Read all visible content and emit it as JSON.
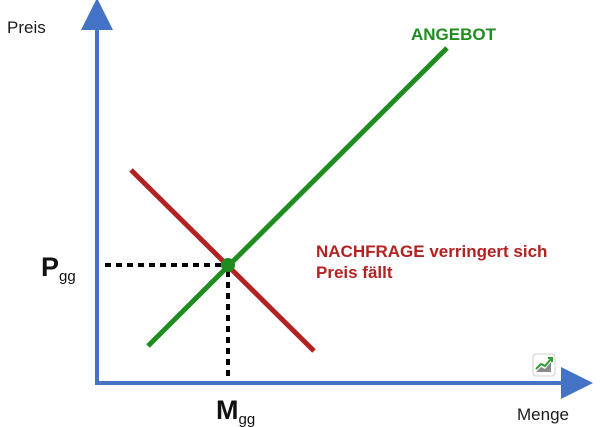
{
  "axes": {
    "y_label": "Preis",
    "x_label": "Menge"
  },
  "equilibrium": {
    "price_main": "P",
    "price_sub": "gg",
    "quantity_main": "M",
    "quantity_sub": "gg"
  },
  "curves": {
    "supply_label": "ANGEBOT",
    "demand_label_line1": "NACHFRAGE verringert sich",
    "demand_label_line2": "Preis fällt"
  },
  "colors": {
    "axis": "#4472c4",
    "supply": "#1e8c1e",
    "demand": "#b22222",
    "guides": "#000000",
    "equilibrium_point": "#1e8c1e"
  },
  "icons": {
    "corner_logo": "chart-trend-up-icon"
  }
}
